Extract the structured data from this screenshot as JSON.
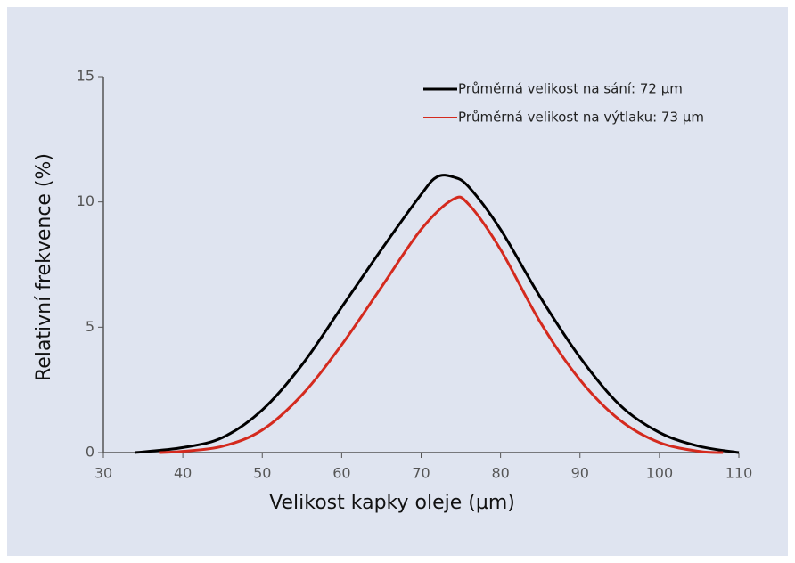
{
  "chart_data": {
    "type": "line",
    "xlabel": "Velikost kapky oleje (µm)",
    "ylabel": "Relativní frekvence (%)",
    "xlim": [
      30,
      110
    ],
    "xticks": [
      30,
      40,
      50,
      60,
      70,
      80,
      90,
      100,
      110
    ],
    "ylim": [
      0,
      15
    ],
    "yticks": [
      0,
      5,
      10,
      15
    ],
    "legend": "upper right",
    "series": [
      {
        "name": "Průměrná velikost na sání: 72 µm",
        "color": "#000000",
        "x": [
          34,
          40,
          45,
          50,
          55,
          60,
          65,
          70,
          72,
          74,
          76,
          80,
          85,
          90,
          95,
          100,
          105,
          110
        ],
        "values": [
          0,
          0.2,
          0.6,
          1.7,
          3.5,
          5.8,
          8.1,
          10.3,
          11.0,
          11.0,
          10.6,
          8.9,
          6.2,
          3.8,
          1.9,
          0.8,
          0.25,
          0
        ]
      },
      {
        "name": "Průměrná velikost na výtlaku: 73 µm",
        "color": "#d42a1e",
        "x": [
          37,
          40,
          45,
          50,
          55,
          60,
          65,
          70,
          74,
          76,
          80,
          85,
          90,
          95,
          100,
          105,
          108
        ],
        "values": [
          0,
          0.05,
          0.25,
          0.9,
          2.3,
          4.3,
          6.6,
          8.9,
          10.1,
          9.9,
          8.1,
          5.2,
          2.9,
          1.3,
          0.4,
          0.05,
          0
        ]
      }
    ]
  }
}
